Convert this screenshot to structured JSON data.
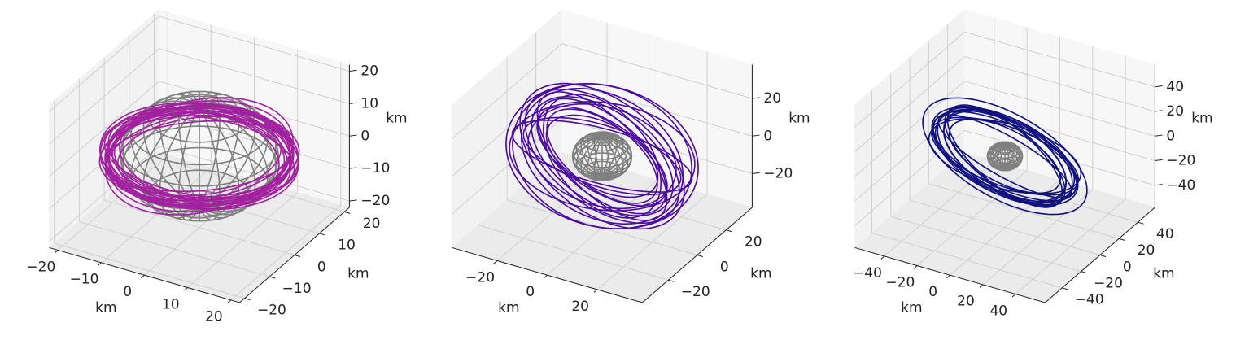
{
  "chart_data": [
    {
      "type": "3d-line",
      "color": "#a2219f",
      "sphere_color": "#808080",
      "grid": true,
      "xlabel": "km",
      "ylabel": "km",
      "zlabel": "km",
      "xlim": [
        -22,
        22
      ],
      "ylim": [
        -22,
        22
      ],
      "zlim": [
        -22,
        22
      ],
      "xticks": [
        {
          "value": -20,
          "label": "−20"
        },
        {
          "value": -10,
          "label": "−10"
        },
        0,
        10,
        20
      ],
      "yticks": [
        {
          "value": -20,
          "label": "−20"
        },
        {
          "value": -10,
          "label": "−10"
        },
        0,
        10,
        20
      ],
      "zticks": [
        {
          "value": -20,
          "label": "−20"
        },
        {
          "value": -10,
          "label": "−10"
        },
        0,
        10,
        20
      ]
    },
    {
      "type": "3d-line",
      "color": "#4b0aa0",
      "sphere_color": "#808080",
      "grid": true,
      "xlabel": "km",
      "ylabel": "km",
      "zlabel": "km",
      "xlim": [
        -38,
        38
      ],
      "ylim": [
        -38,
        38
      ],
      "zlim": [
        -38,
        38
      ],
      "xticks": [
        {
          "value": -20,
          "label": "−20"
        },
        0,
        20
      ],
      "yticks": [
        {
          "value": -20,
          "label": "−20"
        },
        0,
        20
      ],
      "zticks": [
        {
          "value": -20,
          "label": "−20"
        },
        0,
        20
      ]
    },
    {
      "type": "3d-line",
      "color": "#10107e",
      "sphere_color": "#808080",
      "grid": true,
      "xlabel": "km",
      "ylabel": "km",
      "zlabel": "km",
      "xlim": [
        -58,
        58
      ],
      "ylim": [
        -58,
        58
      ],
      "zlim": [
        -58,
        58
      ],
      "xticks": [
        {
          "value": -40,
          "label": "−40"
        },
        {
          "value": -20,
          "label": "−20"
        },
        0,
        20,
        40
      ],
      "yticks": [
        {
          "value": -40,
          "label": "−40"
        },
        {
          "value": -20,
          "label": "−20"
        },
        0,
        20,
        40
      ],
      "zticks": [
        {
          "value": -40,
          "label": "−40"
        },
        {
          "value": -20,
          "label": "−20"
        },
        0,
        20,
        40
      ]
    }
  ]
}
